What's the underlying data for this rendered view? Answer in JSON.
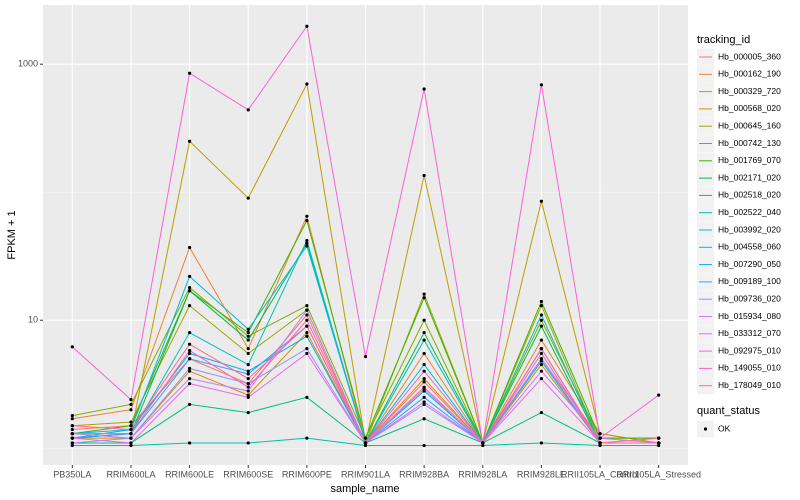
{
  "chart_data": {
    "type": "line",
    "x_label": "sample_name",
    "y_label": "FPKM + 1",
    "categories": [
      "PB350LA",
      "RRIM600LA",
      "RRIM600LE",
      "RRIM600SE",
      "RRIM600PE",
      "RRIM901LA",
      "RRIM928BA",
      "RRIM928LA",
      "RRIM928LE",
      "RRII105LA_Control",
      "RRII105LA_Stressed"
    ],
    "log_y": true,
    "ylim": [
      0.74,
      2900
    ],
    "yticks": [
      10,
      1000
    ],
    "grid": true,
    "legend_title": "tracking_id",
    "legend_position": "right",
    "point_legend": {
      "title": "quant_status",
      "labels": [
        "OK"
      ],
      "color": "#000000"
    },
    "series": [
      {
        "name": "Hb_000005_360",
        "color": "#F8766D",
        "values": [
          1.4,
          1.5,
          5,
          3.2,
          11,
          1.1,
          3,
          1.1,
          5,
          1.2,
          1.1
        ]
      },
      {
        "name": "Hb_000162_190",
        "color": "#EA8331",
        "values": [
          1.7,
          2.0,
          37,
          6,
          65,
          1.1,
          5.5,
          1.1,
          7,
          1.3,
          1.1
        ]
      },
      {
        "name": "Hb_000329_720",
        "color": "#D89000",
        "values": [
          1.2,
          1.2,
          4,
          2.6,
          8,
          1.1,
          3.5,
          1.1,
          4.5,
          1.1,
          1.1
        ]
      },
      {
        "name": "Hb_000568_020",
        "color": "#C09B00",
        "values": [
          1.3,
          1.3,
          250,
          90,
          700,
          1.1,
          135,
          1.1,
          85,
          1.3,
          1.1
        ]
      },
      {
        "name": "Hb_000645_160",
        "color": "#A3A500",
        "values": [
          1.5,
          1.6,
          13,
          5.5,
          12,
          1.1,
          16,
          1.1,
          13,
          1.1,
          1.2
        ]
      },
      {
        "name": "Hb_000742_130",
        "color": "#7CAE00",
        "values": [
          1.8,
          2.2,
          18,
          7.5,
          13,
          1.2,
          10,
          1.1,
          10,
          1.2,
          1.2
        ]
      },
      {
        "name": "Hb_001769_070",
        "color": "#39B600",
        "values": [
          1.3,
          1.5,
          17,
          8,
          60,
          1.2,
          15,
          1.1,
          14,
          1.2,
          1.2
        ]
      },
      {
        "name": "Hb_002171_020",
        "color": "#00BB4E",
        "values": [
          1.2,
          1.3,
          17,
          7,
          40,
          1.1,
          8,
          1.1,
          9,
          1.1,
          1.1
        ]
      },
      {
        "name": "Hb_002518_020",
        "color": "#00BF7D",
        "values": [
          1.1,
          1.1,
          2.2,
          1.9,
          2.5,
          1.1,
          1.7,
          1.1,
          1.9,
          1.1,
          1.1
        ]
      },
      {
        "name": "Hb_002522_040",
        "color": "#00C1A3",
        "values": [
          1.05,
          1.05,
          1.1,
          1.1,
          1.2,
          1.05,
          1.05,
          1.05,
          1.1,
          1.05,
          1.05
        ]
      },
      {
        "name": "Hb_003992_020",
        "color": "#00BFC4",
        "values": [
          1.2,
          1.3,
          8,
          4.5,
          42,
          1.1,
          7,
          1.1,
          11,
          1.1,
          1.1
        ]
      },
      {
        "name": "Hb_004558_060",
        "color": "#00BAE0",
        "values": [
          1.3,
          1.4,
          22,
          8.5,
          38,
          1.1,
          4.5,
          1.1,
          6,
          1.1,
          1.1
        ]
      },
      {
        "name": "Hb_007290_050",
        "color": "#00B0F6",
        "values": [
          1.2,
          1.4,
          5.5,
          4,
          7.5,
          1.1,
          2.8,
          1.1,
          4.8,
          1.1,
          1.1
        ]
      },
      {
        "name": "Hb_009189_100",
        "color": "#35A2FF",
        "values": [
          1.2,
          1.3,
          5,
          3.8,
          9,
          1.1,
          2.5,
          1.1,
          6,
          1.1,
          1.1
        ]
      },
      {
        "name": "Hb_009736_020",
        "color": "#9590FF",
        "values": [
          1.1,
          1.2,
          4.2,
          3.2,
          6,
          1.1,
          2.2,
          1.1,
          5,
          1.1,
          1.1
        ]
      },
      {
        "name": "Hb_015934_080",
        "color": "#C77CFF",
        "values": [
          1.3,
          1.2,
          3.5,
          2.8,
          12,
          1.1,
          2.9,
          1.1,
          4,
          1.2,
          1.1
        ]
      },
      {
        "name": "Hb_033312_070",
        "color": "#E76BF3",
        "values": [
          1.2,
          1.1,
          3.2,
          2.5,
          5.5,
          1.1,
          2.3,
          1.1,
          3.5,
          1.1,
          1.1
        ]
      },
      {
        "name": "Hb_092975_010",
        "color": "#FA62DB",
        "values": [
          6.2,
          2.4,
          850,
          440,
          1980,
          5.2,
          640,
          1.1,
          690,
          1.2,
          2.6
        ]
      },
      {
        "name": "Hb_149055_010",
        "color": "#FF62BC",
        "values": [
          1.3,
          1.3,
          5.8,
          3,
          10,
          1.1,
          4,
          1.1,
          5.5,
          1.1,
          1.1
        ]
      },
      {
        "name": "Hb_178049_010",
        "color": "#FF6C91",
        "values": [
          1.5,
          1.4,
          6.5,
          3.5,
          9,
          1.1,
          3.3,
          1.1,
          6,
          1.1,
          1.2
        ]
      }
    ]
  }
}
